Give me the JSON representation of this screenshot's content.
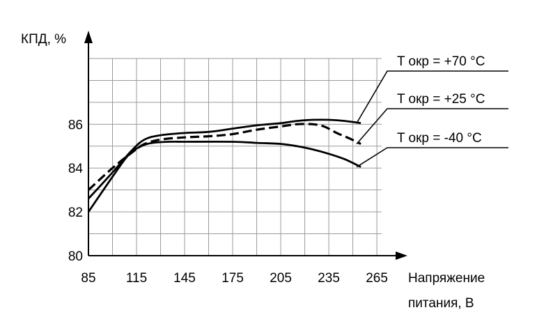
{
  "chart_data": {
    "type": "line",
    "title": "",
    "xlabel_lines": [
      "Напряжение",
      "питания, В"
    ],
    "ylabel": "КПД, %",
    "xlim": [
      85,
      268
    ],
    "ylim": [
      80,
      89
    ],
    "x_ticks": [
      85,
      115,
      145,
      175,
      205,
      235,
      265
    ],
    "y_ticks": [
      80,
      82,
      84,
      86
    ],
    "grid": true,
    "grid_x_step": 15,
    "grid_y_step": 1,
    "legend": "right, leader lines to curve ends",
    "series": [
      {
        "name": "T окр  = +70 °C",
        "style": "solid",
        "x": [
          85,
          100,
          112,
          120,
          130,
          145,
          160,
          175,
          190,
          205,
          215,
          225,
          235,
          245,
          255
        ],
        "y": [
          82.6,
          83.8,
          84.8,
          85.3,
          85.5,
          85.6,
          85.65,
          85.8,
          85.95,
          86.05,
          86.15,
          86.2,
          86.2,
          86.15,
          86.05
        ]
      },
      {
        "name": "T окр  = +25 °C",
        "style": "dashed",
        "x": [
          85,
          100,
          112,
          120,
          130,
          145,
          160,
          175,
          190,
          205,
          215,
          225,
          232,
          240,
          248,
          255
        ],
        "y": [
          83.0,
          84.0,
          84.7,
          85.1,
          85.3,
          85.4,
          85.45,
          85.55,
          85.75,
          85.9,
          86.0,
          86.0,
          85.9,
          85.6,
          85.35,
          85.1
        ]
      },
      {
        "name": "T окр  = -40 °C",
        "style": "solid",
        "x": [
          85,
          100,
          110,
          118,
          125,
          135,
          145,
          175,
          190,
          205,
          215,
          225,
          235,
          245,
          255
        ],
        "y": [
          82.0,
          83.6,
          84.6,
          85.0,
          85.15,
          85.2,
          85.2,
          85.2,
          85.15,
          85.1,
          85.0,
          84.85,
          84.65,
          84.4,
          84.05
        ]
      }
    ]
  }
}
